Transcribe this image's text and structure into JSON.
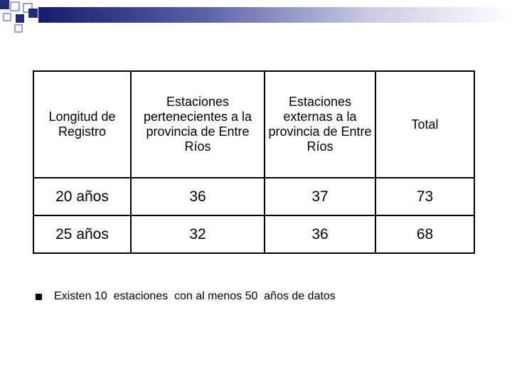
{
  "table": {
    "headers": [
      "Longitud de Registro",
      "Estaciones pertenecientes a la provincia de Entre Ríos",
      "Estaciones externas a la provincia de Entre Ríos",
      "Total"
    ],
    "rows": [
      [
        "20 años",
        "36",
        "37",
        "73"
      ],
      [
        "25 años",
        "32",
        "36",
        "68"
      ]
    ]
  },
  "note": {
    "text": "Existen 10  estaciones  con al menos 50  años de datos"
  },
  "colors": {
    "accent_dark": "#232a7a",
    "accent_light": "#9aa0cf"
  }
}
